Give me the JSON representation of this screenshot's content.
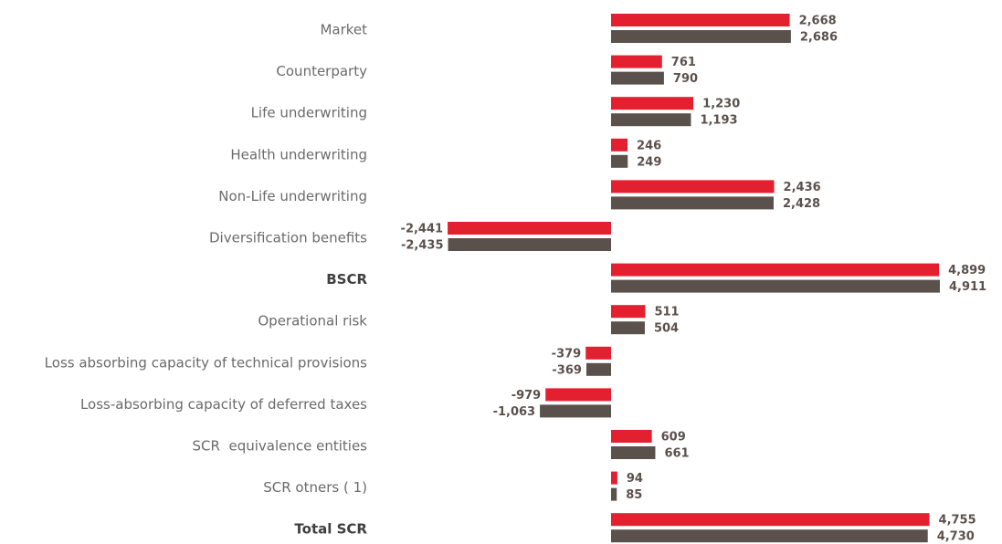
{
  "chart_data": {
    "type": "hbar",
    "categories": [
      "Market",
      "Counterparty",
      "Life underwriting",
      "Health underwriting",
      "Non-Life underwriting",
      "Diversification benefits",
      "BSCR",
      "Operational risk",
      "Loss absorbing capacity of technical provisions",
      "Loss-absorbing capacity of deferred taxes",
      "SCR  equivalence entities",
      "SCR otners ( 1)",
      "Total SCR"
    ],
    "emphasis": [
      6,
      12
    ],
    "series": [
      {
        "color": "#e2202f",
        "values": [
          2668,
          761,
          1230,
          246,
          2436,
          -2441,
          4899,
          511,
          -379,
          -979,
          609,
          94,
          4755
        ],
        "value_labels": [
          "2,668",
          "761",
          "1,230",
          "246",
          "2,436",
          "-2,441",
          "4,899",
          "511",
          "-379",
          "-979",
          "609",
          "94",
          "4,755"
        ]
      },
      {
        "color": "#5b514c",
        "values": [
          2686,
          790,
          1193,
          249,
          2428,
          -2435,
          4911,
          504,
          -369,
          -1063,
          661,
          85,
          4730
        ],
        "value_labels": [
          "2,686",
          "790",
          "1,193",
          "249",
          "2,428",
          "-2,435",
          "4,911",
          "504",
          "-369",
          "-1,063",
          "661",
          "85",
          "4,730"
        ]
      }
    ]
  }
}
